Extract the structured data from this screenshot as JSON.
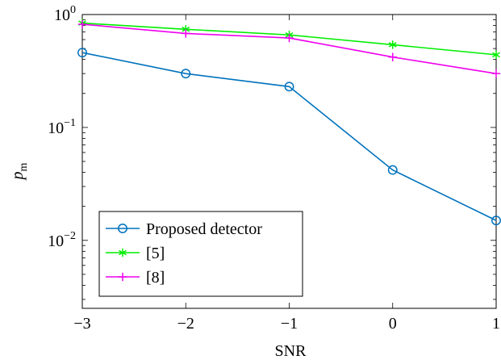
{
  "chart_data": {
    "type": "line",
    "x_scale": "linear",
    "y_scale": "log",
    "xlabel": "SNR",
    "ylabel": "p_m",
    "ylabel_display": {
      "main": "p",
      "sub": "m"
    },
    "xlim": [
      -3,
      1
    ],
    "ylim": [
      0.0025,
      1
    ],
    "x_ticks": [
      -3,
      -2,
      -1,
      0,
      1
    ],
    "x_tick_labels": [
      "−3",
      "−2",
      "−1",
      "0",
      "1"
    ],
    "y_ticks": [
      {
        "value": 1,
        "base": "10",
        "exp": "0"
      },
      {
        "value": 0.1,
        "base": "10",
        "exp": "−1"
      },
      {
        "value": 0.01,
        "base": "10",
        "exp": "−2"
      }
    ],
    "grid": false,
    "legend_position": "bottom-left",
    "x": [
      -3,
      -2,
      -1,
      0,
      1
    ],
    "series": [
      {
        "name": "Proposed detector",
        "color": "#0072bd",
        "marker": "circle",
        "values": [
          0.46,
          0.3,
          0.23,
          0.042,
          0.015
        ]
      },
      {
        "name": "[5]",
        "color": "#00ee00",
        "marker": "asterisk",
        "values": [
          0.84,
          0.74,
          0.66,
          0.54,
          0.44
        ]
      },
      {
        "name": "[8]",
        "color": "#ee00ee",
        "marker": "plus",
        "values": [
          0.82,
          0.68,
          0.62,
          0.42,
          0.3
        ]
      }
    ]
  }
}
